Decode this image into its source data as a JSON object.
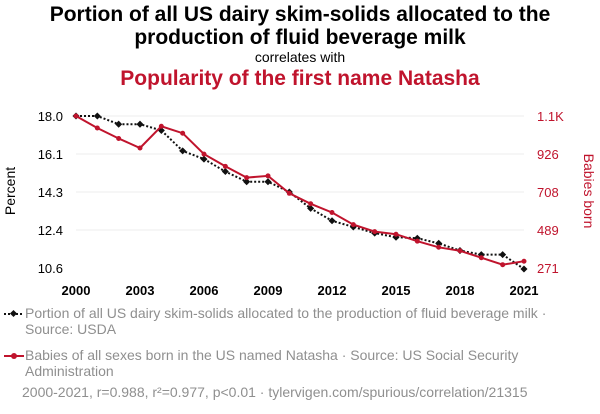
{
  "header": {
    "title": "Portion of all US dairy skim-solids allocated to the production of fluid beverage milk",
    "connector": "correlates with",
    "subtitle": "Popularity of the first name Natasha"
  },
  "colors": {
    "series1": "#111111",
    "series2": "#c0142d",
    "muted": "#8f8f8f"
  },
  "chart_data": {
    "type": "line",
    "x": [
      2000,
      2001,
      2002,
      2003,
      2004,
      2005,
      2006,
      2007,
      2008,
      2009,
      2010,
      2011,
      2012,
      2013,
      2014,
      2015,
      2016,
      2017,
      2018,
      2019,
      2020,
      2021
    ],
    "x_ticks": [
      2000,
      2003,
      2006,
      2009,
      2012,
      2015,
      2018,
      2021
    ],
    "ylabel_left": "Percent",
    "ylabel_right": "Babies born",
    "yticks_left": [
      "18.0",
      "16.1",
      "14.3",
      "12.4",
      "10.6"
    ],
    "yticks_right": [
      "1.1K",
      "926",
      "708",
      "489",
      "271"
    ],
    "ylim_left": [
      10.6,
      18.0
    ],
    "ylim_right": [
      271,
      1144
    ],
    "grid": true,
    "series": [
      {
        "name": "Portion of all US dairy skim-solids allocated to the production of fluid beverage milk",
        "axis": "left",
        "style": "dotted-diamond",
        "values": [
          18.0,
          18.0,
          17.6,
          17.6,
          17.3,
          16.3,
          15.9,
          15.3,
          14.8,
          14.8,
          14.3,
          13.5,
          12.9,
          12.6,
          12.3,
          12.1,
          12.05,
          11.8,
          11.45,
          11.25,
          11.25,
          10.55
        ]
      },
      {
        "name": "Babies of all sexes born in the US named Natasha",
        "axis": "right",
        "style": "solid-dot",
        "values": [
          1144,
          1075,
          1015,
          960,
          1085,
          1045,
          925,
          855,
          790,
          800,
          700,
          640,
          590,
          520,
          480,
          465,
          425,
          390,
          370,
          330,
          290,
          310
        ]
      }
    ]
  },
  "legend": {
    "item1": "Portion of all US dairy skim-solids allocated to the production of fluid beverage milk · Source: USDA",
    "item2": "Babies of all sexes born in the US named Natasha · Source: US Social Security Administration"
  },
  "footer": "2000-2021, r=0.988, r²=0.977, p<0.01 · tylervigen.com/spurious/correlation/21315"
}
